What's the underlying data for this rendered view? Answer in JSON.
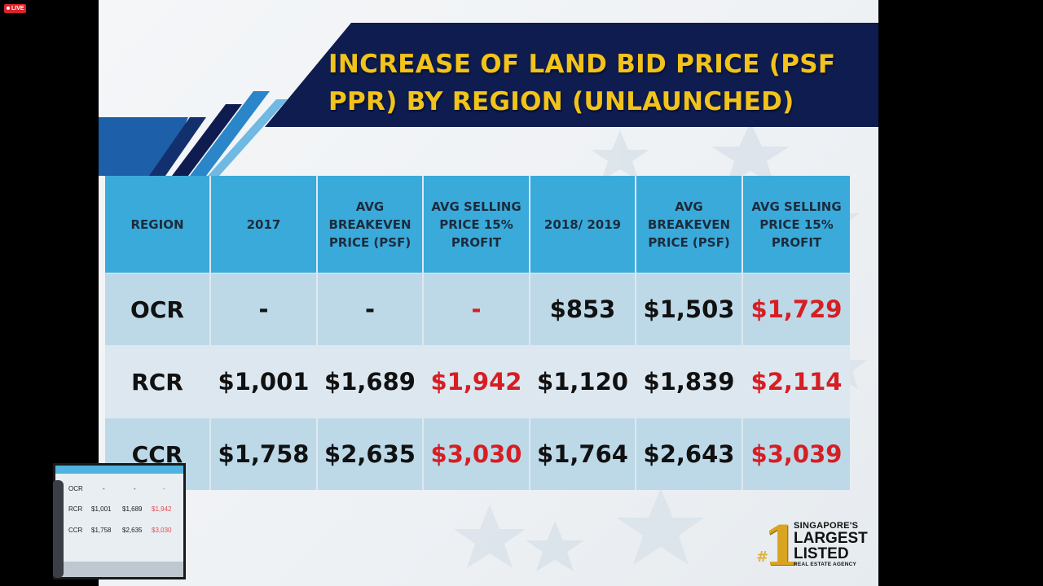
{
  "stream": {
    "live_label": "LIVE"
  },
  "slide": {
    "title": "INCREASE OF LAND BID PRICE (PSF PPR) BY REGION (UNLAUNCHED)",
    "table": {
      "headers": [
        "REGION",
        "2017",
        "AVG BREAKEVEN PRICE (PSF)",
        "AVG SELLING PRICE 15% PROFIT",
        "2018/ 2019",
        "AVG BREAKEVEN PRICE (PSF)",
        "AVG SELLING PRICE 15% PROFIT"
      ],
      "rows": [
        [
          "OCR",
          "-",
          "-",
          "-",
          "$853",
          "$1,503",
          "$1,729"
        ],
        [
          "RCR",
          "$1,001",
          "$1,689",
          "$1,942",
          "$1,120",
          "$1,839",
          "$2,114"
        ],
        [
          "CCR",
          "$1,758",
          "$2,635",
          "$3,030",
          "$1,764",
          "$2,643",
          "$3,039"
        ]
      ]
    },
    "logo": {
      "line1": "SINGAPORE'S",
      "line2": "LARGEST",
      "line3": "LISTED",
      "line4": "REAL ESTATE AGENCY",
      "badge_hash": "#",
      "badge_number": "1"
    }
  },
  "camera_feed": {
    "rows": [
      [
        "OCR",
        "-",
        "-",
        "-"
      ],
      [
        "RCR",
        "$1,001",
        "$1,689",
        "$1,942"
      ],
      [
        "CCR",
        "$1,758",
        "$2,635",
        "$3,030"
      ]
    ]
  },
  "colors": {
    "title_bar": "#0e1c4f",
    "title_text": "#f2c31a",
    "header_cell": "#3aaadb",
    "profit_text": "#d61e23"
  }
}
